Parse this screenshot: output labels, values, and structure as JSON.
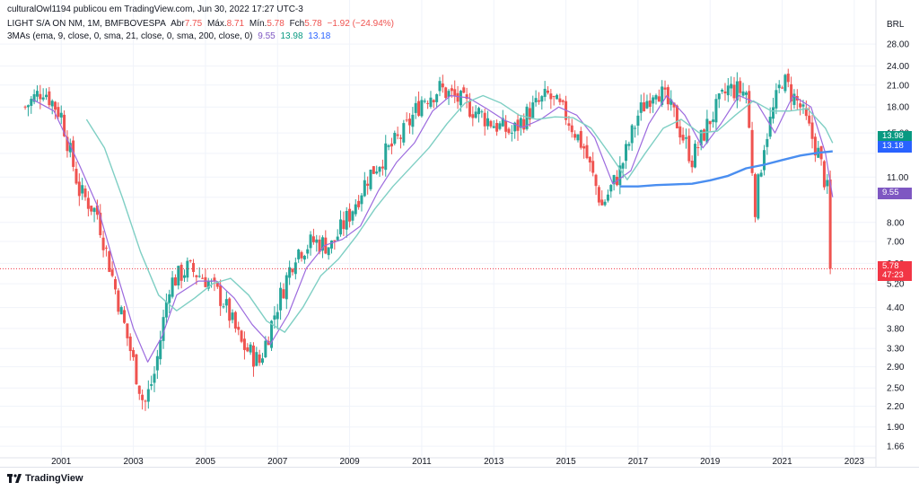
{
  "header": {
    "publisher_line": "culturalOwl1194 publicou em TradingView.com, Jun 30, 2022 17:27 UTC-3",
    "symbol": "LIGHT S/A ON NM, 1M, BMFBOVESPA",
    "open_label": "Abr",
    "open_value": "7.75",
    "high_label": "Máx.",
    "high_value": "8.71",
    "low_label": "Mín.",
    "low_value": "5.78",
    "close_label": "Fch",
    "close_value": "5.78",
    "change": "−1.92 (−24.94%)",
    "indicator": "3MAs (ema, 9, close, 0, sma, 21, close, 0, sma, 200, close, 0)",
    "ma_values": [
      "9.55",
      "13.98",
      "13.18"
    ],
    "currency": "BRL"
  },
  "price_tags": {
    "sma21": "13.98",
    "sma200": "13.18",
    "ema9": "9.55",
    "last_price": "5.78",
    "countdown": "47:23"
  },
  "footer": {
    "brand": "TradingView"
  },
  "colors": {
    "up": "#26a69a",
    "down": "#ef5350",
    "ema9": "#9c6ade",
    "sma21": "#7fcfc4",
    "sma200": "#4a8ef0",
    "sma21_tag": "#089981",
    "sma200_tag": "#2962ff",
    "ema9_tag": "#7e57c2",
    "last_tag": "#f23645"
  },
  "chart_data": {
    "type": "candlestick",
    "scale": "log",
    "y_ticks": [
      28.0,
      24.0,
      21.0,
      18.0,
      15.0,
      13.0,
      11.0,
      9.55,
      8.0,
      7.0,
      6.0,
      5.2,
      4.4,
      3.8,
      3.3,
      2.9,
      2.5,
      2.2,
      1.9,
      1.66
    ],
    "y_tick_labels": [
      "28.00",
      "24.00",
      "21.00",
      "18.00",
      "15.00",
      "",
      "11.00",
      "",
      "8.00",
      "7.00",
      "6.00",
      "5.20",
      "4.40",
      "3.80",
      "3.30",
      "2.90",
      "2.50",
      "2.20",
      "1.90",
      "1.66"
    ],
    "x_ticks": [
      "2001",
      "2003",
      "2005",
      "2007",
      "2009",
      "2011",
      "2013",
      "2015",
      "2017",
      "2019",
      "2021",
      "2023"
    ],
    "x_range": [
      1999.5,
      2023.6
    ],
    "y_range": [
      1.55,
      32.0
    ],
    "series": [
      {
        "name": "Close",
        "x": [
          2000.0,
          2000.5,
          2001.0,
          2001.5,
          2002.0,
          2002.5,
          2003.0,
          2003.3,
          2003.6,
          2004.0,
          2004.5,
          2005.0,
          2005.5,
          2006.0,
          2006.5,
          2007.0,
          2007.5,
          2008.0,
          2008.5,
          2009.0,
          2009.5,
          2010.0,
          2010.5,
          2011.0,
          2011.5,
          2012.0,
          2012.5,
          2013.0,
          2013.5,
          2014.0,
          2014.5,
          2015.0,
          2015.5,
          2016.0,
          2016.5,
          2017.0,
          2017.5,
          2018.0,
          2018.5,
          2019.0,
          2019.5,
          2020.0,
          2020.25,
          2020.5,
          2021.0,
          2021.5,
          2022.0,
          2022.25,
          2022.4
        ],
        "y": [
          18.0,
          20.5,
          17.0,
          10.0,
          8.5,
          5.0,
          3.0,
          2.2,
          2.8,
          5.2,
          5.8,
          5.4,
          4.6,
          3.4,
          3.0,
          4.5,
          6.5,
          7.0,
          6.8,
          8.5,
          11.0,
          13.0,
          15.0,
          19.0,
          20.5,
          19.0,
          17.5,
          16.0,
          15.0,
          17.5,
          19.5,
          17.0,
          13.5,
          9.0,
          11.5,
          17.0,
          21.0,
          17.0,
          12.5,
          16.5,
          20.5,
          20.0,
          9.0,
          14.0,
          22.0,
          18.0,
          13.0,
          10.0,
          5.78
        ]
      },
      {
        "name": "EMA 9",
        "x": [
          2000.2,
          2000.8,
          2001.5,
          2002.0,
          2002.5,
          2003.0,
          2003.4,
          2003.8,
          2004.2,
          2004.8,
          2005.3,
          2005.8,
          2006.3,
          2006.8,
          2007.3,
          2007.8,
          2008.3,
          2008.8,
          2009.3,
          2009.8,
          2010.3,
          2010.8,
          2011.3,
          2011.8,
          2012.3,
          2012.8,
          2013.3,
          2013.8,
          2014.3,
          2014.8,
          2015.3,
          2015.8,
          2016.3,
          2016.8,
          2017.3,
          2017.8,
          2018.3,
          2018.8,
          2019.3,
          2019.8,
          2020.3,
          2020.8,
          2021.3,
          2021.8,
          2022.2,
          2022.4
        ],
        "y": [
          19.0,
          17.5,
          12.0,
          9.0,
          5.8,
          3.8,
          3.0,
          3.6,
          4.8,
          5.3,
          5.3,
          4.7,
          3.9,
          3.4,
          4.2,
          5.8,
          6.8,
          7.1,
          7.8,
          10.0,
          12.2,
          14.0,
          17.5,
          19.5,
          19.2,
          17.8,
          16.4,
          15.6,
          16.5,
          18.0,
          17.0,
          14.5,
          10.5,
          11.5,
          16.0,
          19.5,
          17.0,
          13.5,
          16.0,
          19.5,
          18.5,
          15.0,
          19.5,
          18.0,
          13.0,
          9.55
        ]
      },
      {
        "name": "SMA 21",
        "x": [
          2001.7,
          2002.2,
          2002.7,
          2003.2,
          2003.7,
          2004.2,
          2004.7,
          2005.2,
          2005.7,
          2006.2,
          2006.7,
          2007.2,
          2007.7,
          2008.2,
          2008.7,
          2009.2,
          2009.7,
          2010.2,
          2010.7,
          2011.2,
          2011.7,
          2012.2,
          2012.7,
          2013.2,
          2013.7,
          2014.2,
          2014.7,
          2015.2,
          2015.7,
          2016.2,
          2016.7,
          2017.2,
          2017.7,
          2018.2,
          2018.7,
          2019.2,
          2019.7,
          2020.2,
          2020.7,
          2021.2,
          2021.7,
          2022.2,
          2022.4
        ],
        "y": [
          16.5,
          13.5,
          9.5,
          6.5,
          4.8,
          4.3,
          4.7,
          5.2,
          5.4,
          4.8,
          4.0,
          3.7,
          4.4,
          5.5,
          6.2,
          7.3,
          8.8,
          10.3,
          11.8,
          13.5,
          16.0,
          18.5,
          19.5,
          18.5,
          17.0,
          16.5,
          16.8,
          16.7,
          15.5,
          13.0,
          10.8,
          13.0,
          15.5,
          16.5,
          15.0,
          15.2,
          17.0,
          18.8,
          17.5,
          17.5,
          17.8,
          15.5,
          13.98
        ]
      },
      {
        "name": "SMA 200",
        "x": [
          2016.5,
          2017.0,
          2017.5,
          2018.0,
          2018.5,
          2019.0,
          2019.5,
          2020.0,
          2020.5,
          2021.0,
          2021.5,
          2022.0,
          2022.4
        ],
        "y": [
          10.3,
          10.3,
          10.4,
          10.45,
          10.5,
          10.75,
          11.1,
          11.7,
          12.0,
          12.4,
          12.8,
          13.05,
          13.18
        ]
      }
    ]
  }
}
